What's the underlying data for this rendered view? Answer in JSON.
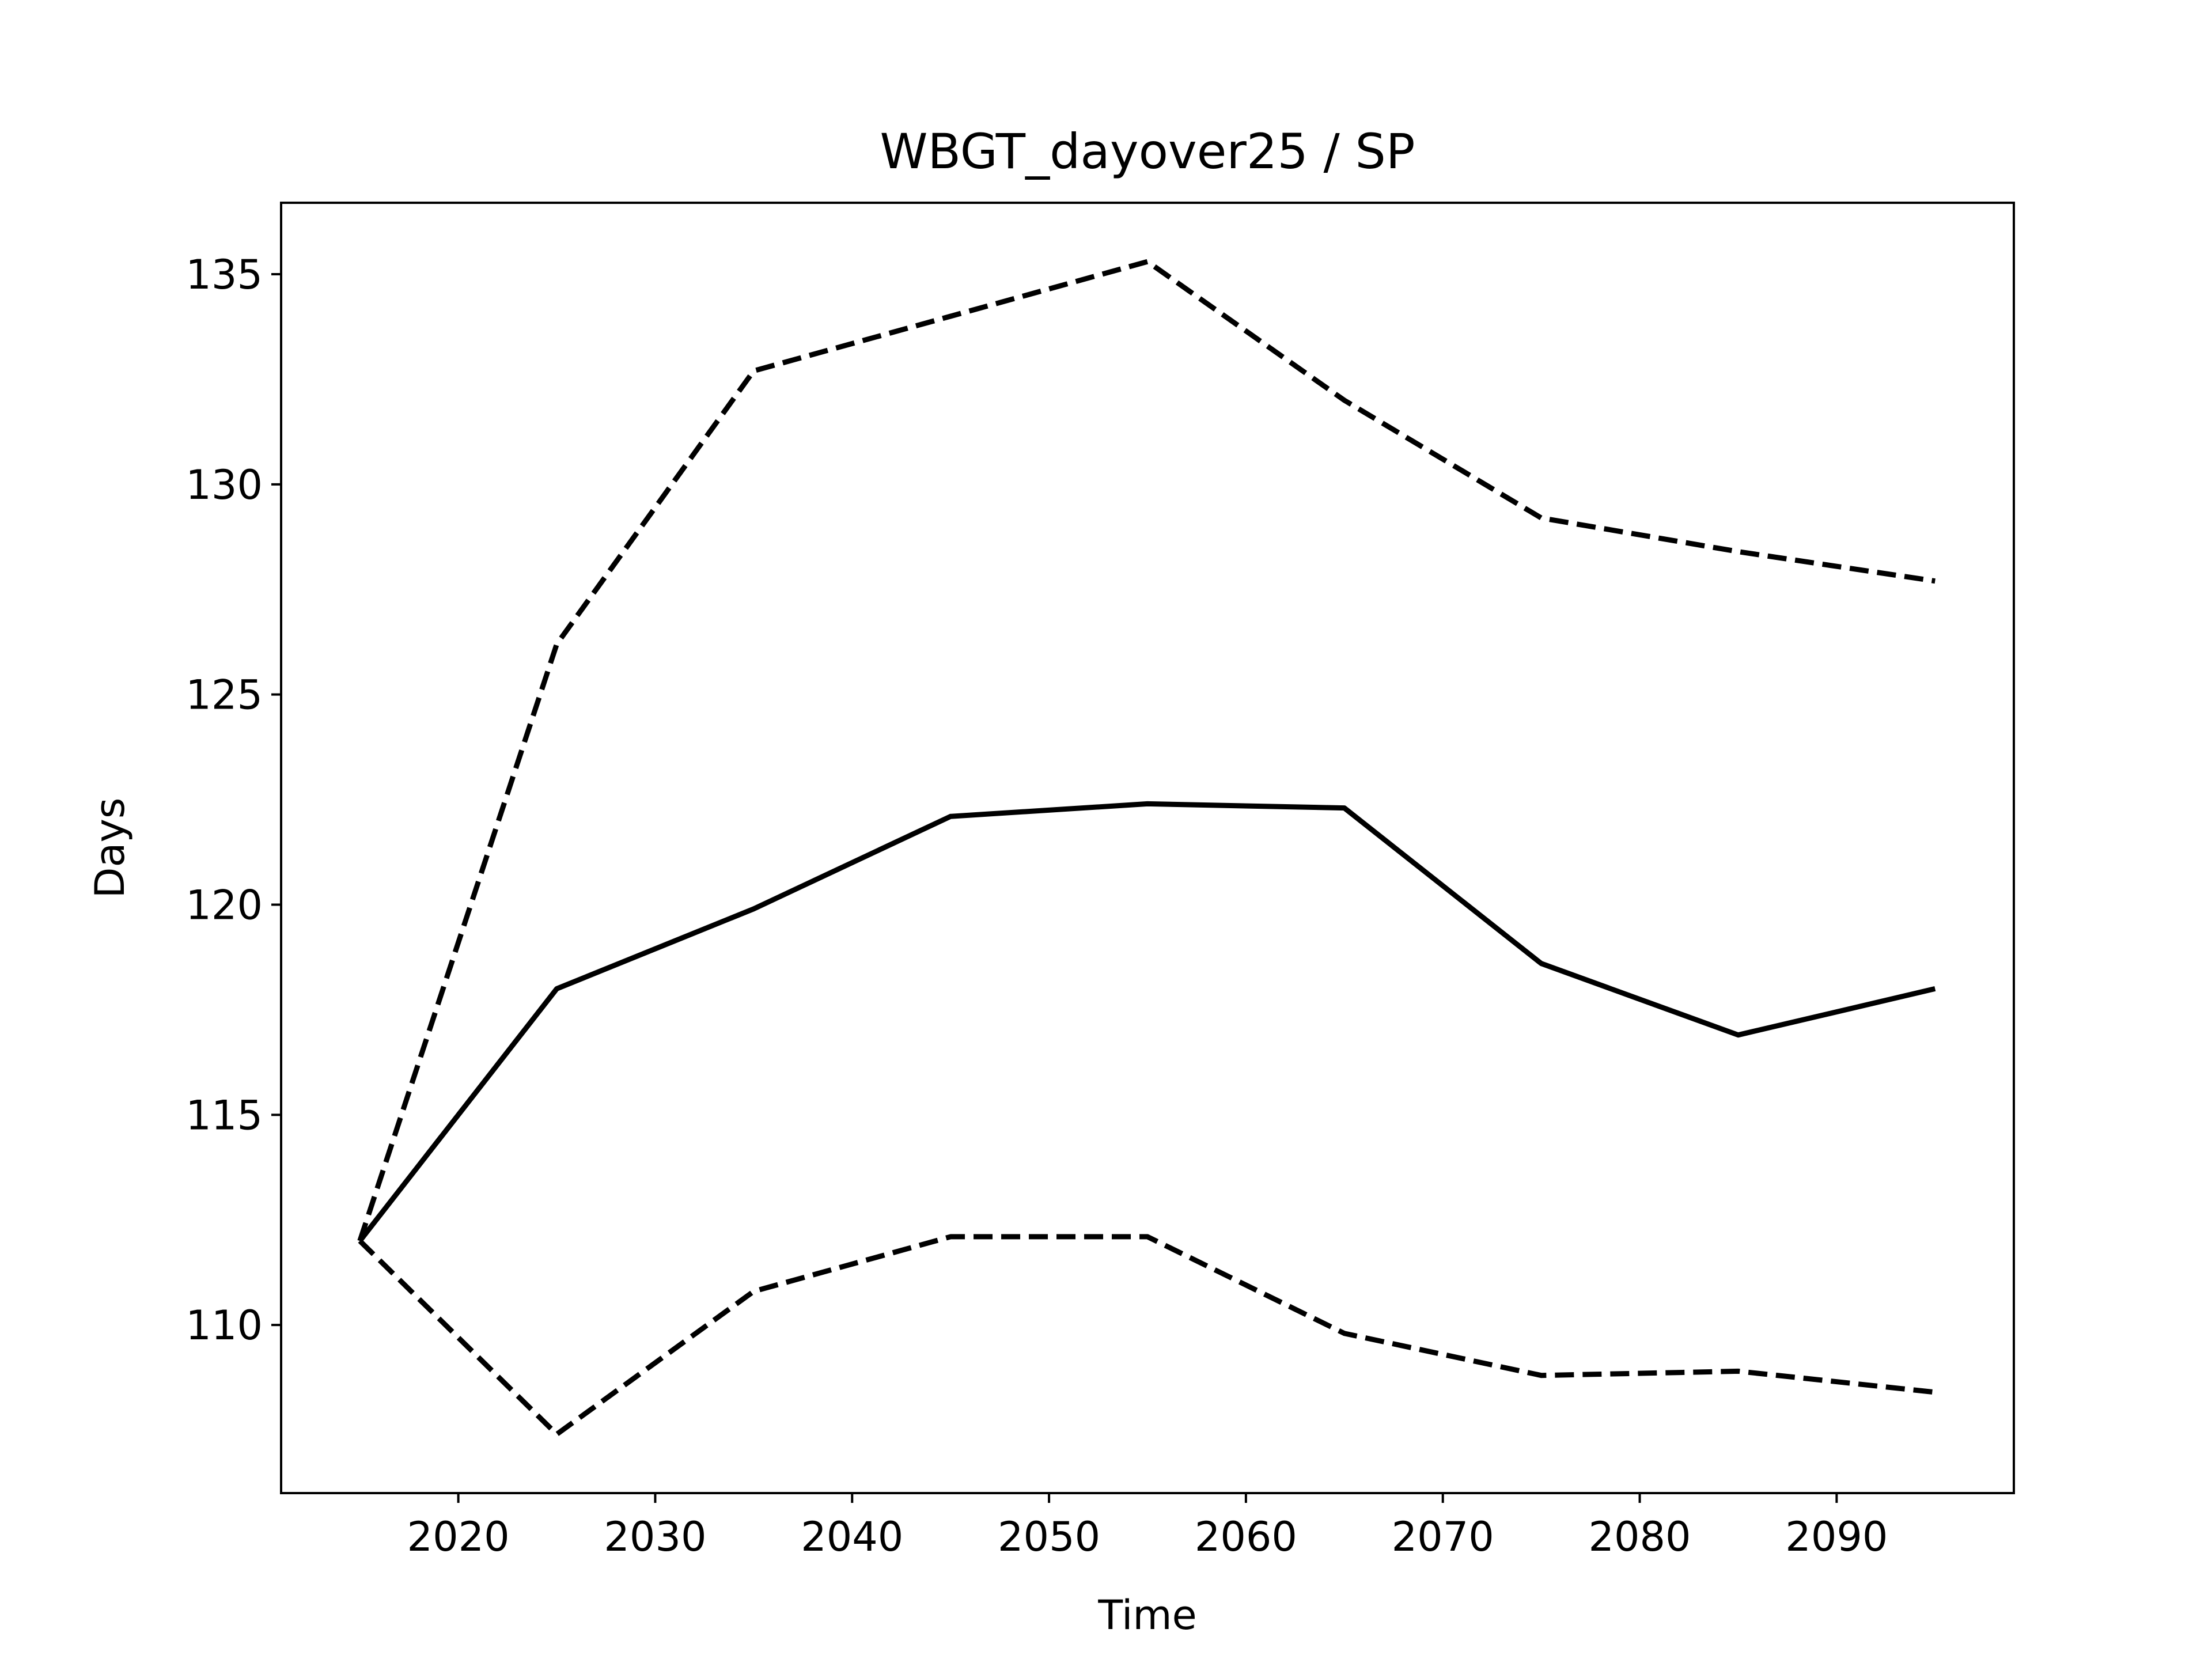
{
  "chart_data": {
    "type": "line",
    "title": "WBGT_dayover25 / SP",
    "xlabel": "Time",
    "ylabel": "Days",
    "x": [
      2015,
      2025,
      2035,
      2045,
      2055,
      2065,
      2075,
      2085,
      2095
    ],
    "xlim": [
      2011,
      2099
    ],
    "ylim": [
      106.0,
      136.7
    ],
    "xticks": [
      2020,
      2030,
      2040,
      2050,
      2060,
      2070,
      2080,
      2090
    ],
    "yticks": [
      110,
      115,
      120,
      125,
      130,
      135
    ],
    "grid": false,
    "series": [
      {
        "style": "solid",
        "color": "#000000",
        "values": [
          112.0,
          118.0,
          119.9,
          122.1,
          122.4,
          122.3,
          118.6,
          116.9,
          118.0
        ]
      },
      {
        "style": "dashed",
        "color": "#000000",
        "values": [
          112.0,
          126.2,
          132.7,
          134.0,
          135.3,
          132.0,
          129.2,
          128.4,
          127.7
        ]
      },
      {
        "style": "dashed",
        "color": "#000000",
        "values": [
          112.0,
          107.4,
          110.8,
          112.1,
          112.1,
          109.8,
          108.8,
          108.9,
          108.4
        ]
      }
    ]
  }
}
